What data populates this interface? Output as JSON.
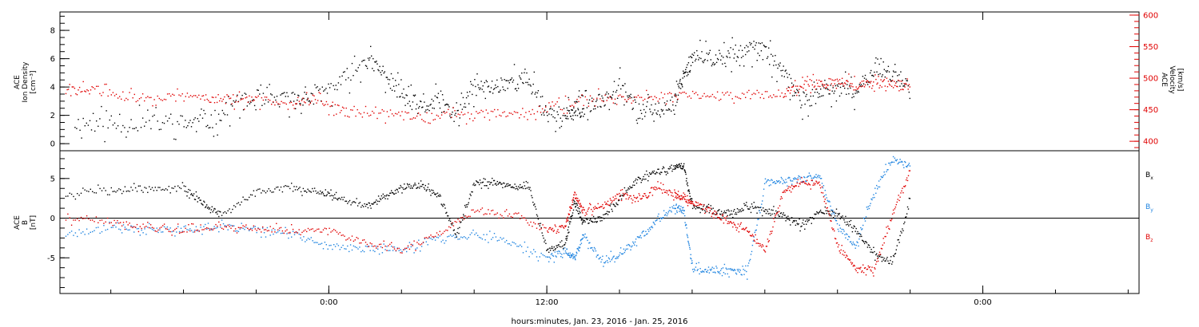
{
  "chart_data": [
    {
      "type": "scatter",
      "panel": "top",
      "ylabel_lines": [
        "ACE",
        "Ion Density",
        "[cm⁻³]"
      ],
      "ylim": [
        -0.5,
        9.3
      ],
      "yticks": [
        0,
        2,
        4,
        6,
        8
      ],
      "y2label_lines": [
        "ACE",
        "Velocity",
        "[km/s]"
      ],
      "y2lim": [
        385,
        605
      ],
      "y2ticks": [
        400,
        450,
        500,
        550,
        600
      ],
      "xlim_hours": [
        -14.8,
        44.6
      ],
      "series": [
        {
          "axis": "left",
          "color": "#000000",
          "x": [
            -14,
            -12,
            -10,
            -8,
            -6.5,
            -5,
            -3.5,
            -2,
            -1,
            0.5,
            2,
            3,
            4,
            5,
            6,
            7,
            8,
            9,
            10,
            11,
            12,
            13,
            13.5,
            14,
            15,
            16,
            17,
            18,
            19,
            19.5,
            20,
            21,
            22,
            23,
            24,
            25,
            26,
            27,
            28,
            29,
            30,
            31,
            32
          ],
          "y": [
            1.5,
            1.4,
            1.5,
            1.5,
            1.6,
            3.0,
            3.0,
            3.2,
            3.3,
            4.2,
            6.0,
            5.0,
            3.5,
            2.5,
            3.0,
            2.0,
            4.0,
            4.0,
            4.5,
            4.5,
            2.2,
            2.0,
            2.4,
            2.5,
            3.0,
            4.5,
            2.3,
            2.2,
            3.0,
            5.0,
            6.0,
            6.1,
            6.2,
            6.8,
            6.5,
            5.0,
            3.0,
            3.5,
            4.0,
            3.5,
            5.5,
            5.0,
            4.0
          ]
        },
        {
          "axis": "right",
          "color": "#e00000",
          "x": [
            -14.5,
            -13,
            -11,
            -9,
            -7,
            -5.5,
            -4,
            -2,
            -0.5,
            1,
            3,
            5,
            7,
            9,
            11,
            13,
            15,
            17,
            19,
            21,
            23,
            25,
            26,
            27,
            28,
            29,
            30,
            31,
            32
          ],
          "y": [
            480,
            483,
            470,
            470,
            471,
            466,
            465,
            465,
            464,
            445,
            445,
            440,
            442,
            445,
            446,
            460,
            470,
            470,
            472,
            474,
            475,
            476,
            492,
            494,
            496,
            490,
            492,
            492,
            490
          ]
        }
      ]
    },
    {
      "type": "scatter",
      "panel": "bottom",
      "ylabel_lines": [
        "ACE",
        "B",
        "[nT]"
      ],
      "ylim": [
        -9.5,
        8.5
      ],
      "yticks": [
        -5,
        0,
        5
      ],
      "xlim_hours": [
        -14.8,
        44.6
      ],
      "xticks": [
        {
          "hour": 0,
          "label": "0:00"
        },
        {
          "hour": 12,
          "label": "12:00"
        },
        {
          "hour": 36,
          "label": "0:00"
        }
      ],
      "xlabel": "hours:minutes, Jan. 23, 2016 - Jan. 25, 2016",
      "zero_line": true,
      "series": [
        {
          "name": "Bx",
          "color": "#000000",
          "x": [
            -14.5,
            -12,
            -10,
            -8,
            -7,
            -6,
            -4,
            -2,
            -0.5,
            0.5,
            2,
            3,
            4,
            5,
            6,
            7,
            8,
            9,
            10,
            11,
            12,
            13,
            13.5,
            14,
            15,
            16,
            17,
            18,
            19,
            19.5,
            20,
            21,
            22,
            23,
            24,
            25,
            26,
            27,
            28,
            29,
            30,
            31,
            32
          ],
          "y": [
            3.0,
            3.7,
            3.8,
            3.9,
            2.0,
            0.5,
            3.5,
            3.8,
            3.4,
            2.5,
            1.5,
            2.5,
            4.0,
            4.2,
            3.0,
            -2.0,
            4.5,
            4.5,
            4.0,
            4.0,
            -4.0,
            -3.0,
            2.0,
            -0.5,
            0,
            2.5,
            5.0,
            5.8,
            6.5,
            6.6,
            1.5,
            1.0,
            0.5,
            1.5,
            1.0,
            0.5,
            -1.0,
            1.0,
            0.5,
            -1.5,
            -4.5,
            -5.5,
            2.5
          ]
        },
        {
          "name": "By",
          "color": "#1f84e0",
          "x": [
            -14.5,
            -12,
            -10,
            -8,
            -6,
            -4,
            -2,
            0,
            2,
            4,
            6,
            8,
            10,
            12,
            13,
            13.5,
            14,
            15,
            16,
            17,
            18,
            19,
            19.5,
            20,
            21,
            22,
            23,
            24,
            25,
            26,
            27,
            28,
            29,
            30,
            31,
            32
          ],
          "y": [
            -2.0,
            -1.0,
            -1.5,
            -1.3,
            -1.0,
            -1.5,
            -2.0,
            -3.5,
            -3.8,
            -4.0,
            -2.5,
            -2.0,
            -3.0,
            -5.0,
            -4.0,
            -5.0,
            -2.0,
            -5.5,
            -4.5,
            -2.5,
            -0.5,
            1.5,
            1.0,
            -6.3,
            -6.5,
            -6.6,
            -6.8,
            4.5,
            4.8,
            5.0,
            5.3,
            -1.0,
            -3.5,
            3.5,
            7.5,
            6.5
          ]
        },
        {
          "name": "Bz",
          "color": "#e00000",
          "x": [
            -14.5,
            -12,
            -10,
            -8,
            -6,
            -4,
            -2,
            0,
            2,
            4,
            6,
            8,
            10,
            12,
            13,
            13.5,
            14,
            15,
            16,
            17,
            18,
            19,
            19.5,
            20,
            21,
            22,
            23,
            24,
            25,
            26,
            27,
            28,
            29,
            30,
            31,
            32
          ],
          "y": [
            0,
            -0.5,
            -1.0,
            -1.5,
            -1.0,
            -1.2,
            -1.5,
            -1.5,
            -3.0,
            -4.0,
            -2.0,
            1.0,
            0.5,
            -1.5,
            -1.0,
            3.0,
            1.0,
            1.5,
            3.0,
            2.5,
            4.0,
            3.0,
            2.5,
            2.0,
            1.0,
            -0.5,
            -1.5,
            -4.0,
            3.5,
            4.5,
            4.5,
            -3.5,
            -6.5,
            -6.5,
            0.5,
            6.0
          ]
        }
      ],
      "legend": [
        {
          "label": "B",
          "sub": "x",
          "color": "#000000"
        },
        {
          "label": "B",
          "sub": "y",
          "color": "#1f84e0"
        },
        {
          "label": "B",
          "sub": "z",
          "color": "#e00000"
        }
      ]
    }
  ]
}
